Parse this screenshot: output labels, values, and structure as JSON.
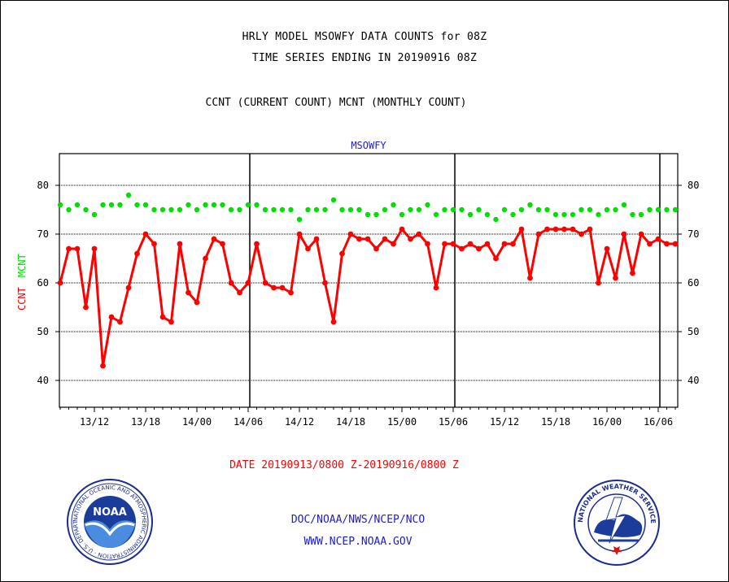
{
  "header": {
    "title_line1": "HRLY MODEL MSOWFY DATA COUNTS for 08Z",
    "title_line2": "TIME SERIES ENDING IN 20190916 08Z",
    "subtitle": "CCNT (CURRENT COUNT) MCNT (MONTHLY COUNT)"
  },
  "chart_data": {
    "type": "line",
    "title": "MSOWFY",
    "ylabel_left": "CCNT",
    "ylabel_right": "MCNT",
    "ylim": [
      34.5,
      86.5
    ],
    "y_ticks": [
      40,
      50,
      60,
      70,
      80
    ],
    "x_tick_labels": [
      "13/12",
      "13/18",
      "14/00",
      "14/06",
      "14/12",
      "14/18",
      "15/00",
      "15/06",
      "15/12",
      "15/18",
      "16/00",
      "16/06"
    ],
    "day_boundaries": [
      "14/06",
      "15/06",
      "16/06"
    ],
    "grid": true,
    "series": [
      {
        "name": "CCNT",
        "color": "#ff0000",
        "values": [
          60,
          67,
          67,
          55,
          67,
          43,
          53,
          52,
          59,
          66,
          70,
          68,
          53,
          52,
          68,
          58,
          56,
          65,
          69,
          68,
          60,
          58,
          60,
          68,
          60,
          59,
          59,
          58,
          70,
          67,
          69,
          60,
          52,
          66,
          70,
          69,
          69,
          67,
          69,
          68,
          71,
          69,
          70,
          68,
          59,
          68,
          68,
          67,
          68,
          67,
          68,
          65,
          68,
          68,
          71,
          61,
          70,
          71,
          71,
          71,
          71,
          70,
          71,
          60,
          67,
          61,
          70,
          62,
          70,
          68,
          69,
          68,
          68
        ]
      },
      {
        "name": "MCNT",
        "color": "#00e000",
        "values": [
          76,
          75,
          76,
          75,
          74,
          76,
          76,
          76,
          78,
          76,
          76,
          75,
          75,
          75,
          75,
          76,
          75,
          76,
          76,
          76,
          75,
          75,
          76,
          76,
          75,
          75,
          75,
          75,
          73,
          75,
          75,
          75,
          77,
          75,
          75,
          75,
          74,
          74,
          75,
          76,
          74,
          75,
          75,
          76,
          74,
          75,
          75,
          75,
          74,
          75,
          74,
          73,
          75,
          74,
          75,
          76,
          75,
          75,
          74,
          74,
          74,
          75,
          75,
          74,
          75,
          75,
          76,
          74,
          74,
          75,
          75,
          75,
          75
        ]
      }
    ]
  },
  "footer": {
    "date_range": "DATE 20190913/0800 Z-20190916/0800 Z",
    "org": "DOC/NOAA/NWS/NCEP/NCO",
    "website": "WWW.NCEP.NOAA.GOV",
    "noaa_logo_text": "NOAA",
    "noaa_ring_text": "NATIONAL OCEANIC AND ATMOSPHERIC ADMINISTRATION · U.S. DEPARTMENT OF COMMERCE",
    "nws_ring_text": "NATIONAL WEATHER SERVICE"
  }
}
